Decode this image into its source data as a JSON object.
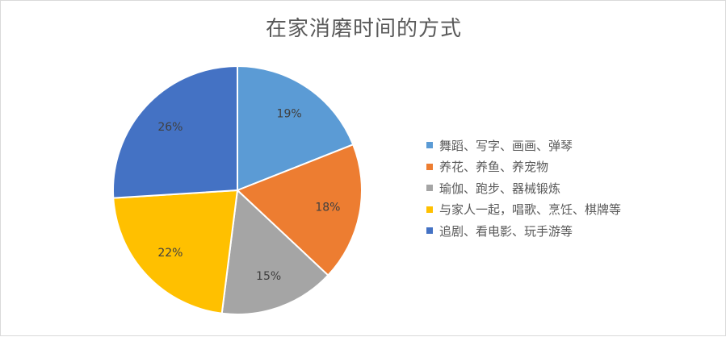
{
  "chart_data": {
    "type": "pie",
    "title": "在家消磨时间的方式",
    "categories": [
      "舞蹈、写字、画画、弹琴",
      "养花、养鱼、养宠物",
      "瑜伽、跑步、器械锻炼",
      "与家人一起，唱歌、烹饪、棋牌等",
      "追剧、看电影、玩手游等"
    ],
    "values": [
      19,
      18,
      15,
      22,
      26
    ],
    "labels": [
      "19%",
      "18%",
      "15%",
      "22%",
      "26%"
    ],
    "colors": [
      "#5b9bd5",
      "#ed7d31",
      "#a5a5a5",
      "#ffc000",
      "#4472c4"
    ],
    "legend_position": "right",
    "start_angle": "top, clockwise"
  }
}
